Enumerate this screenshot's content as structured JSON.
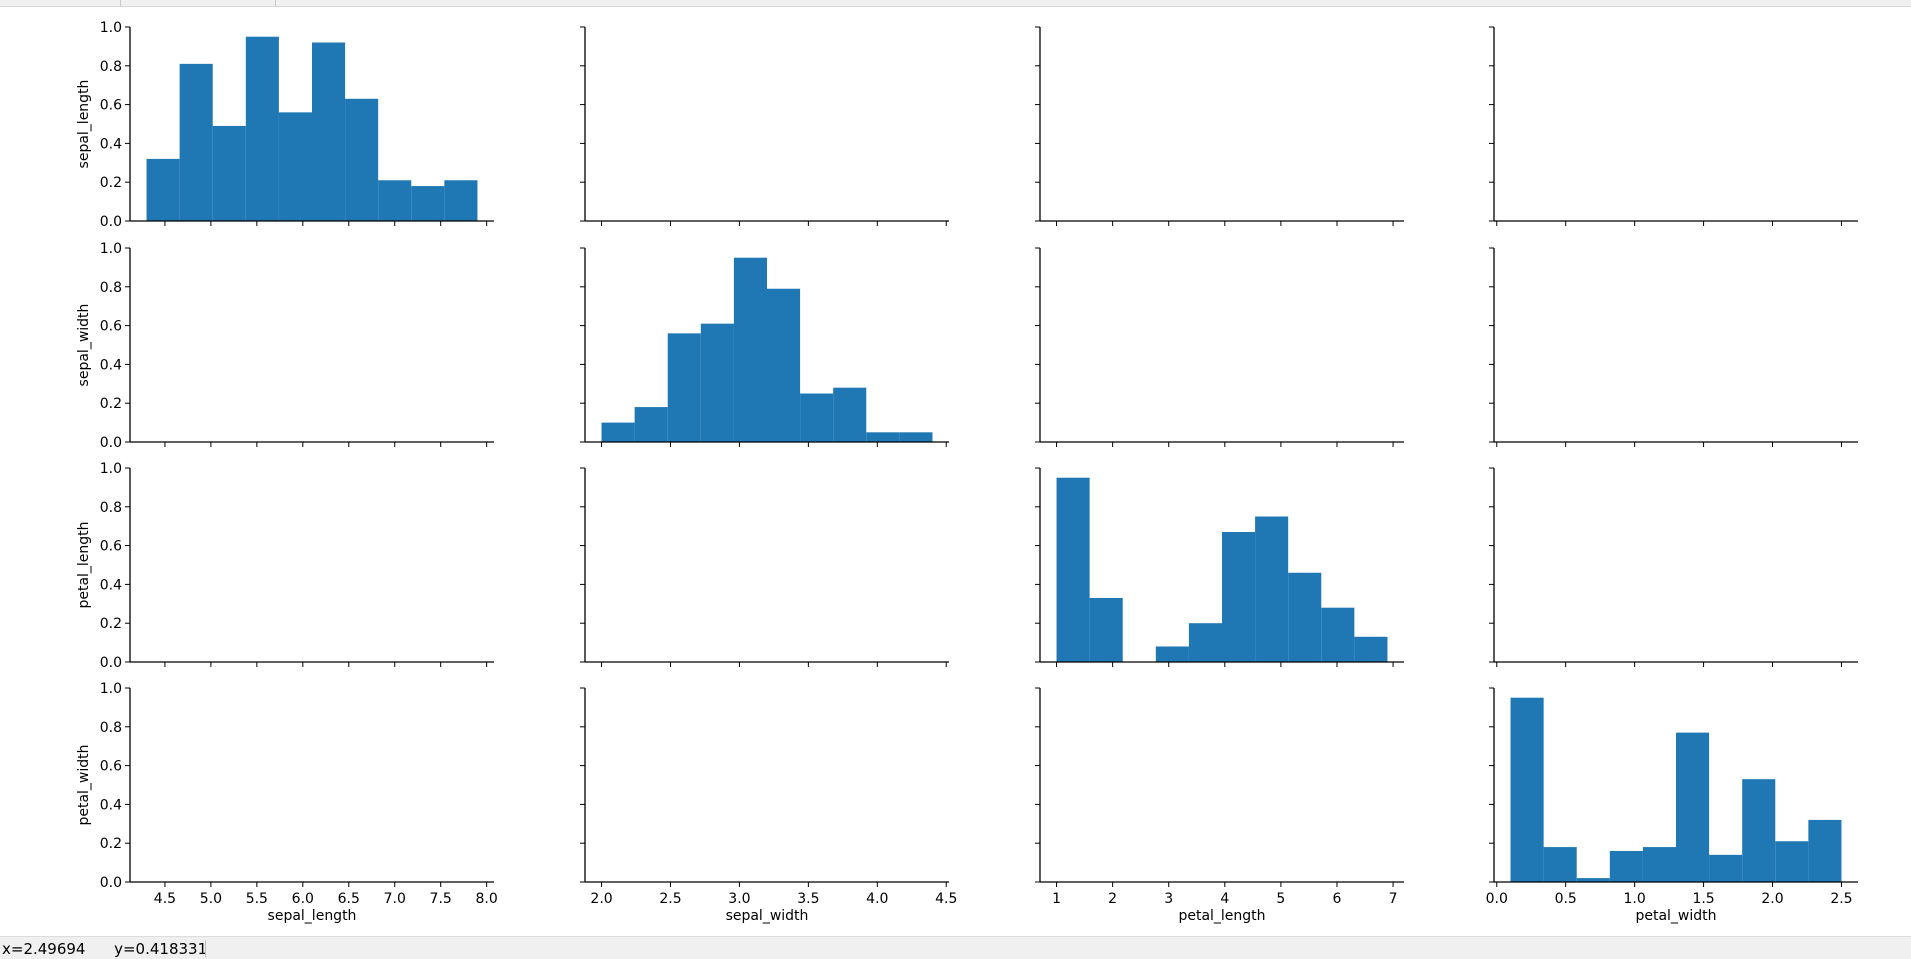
{
  "chart_data": {
    "type": "pairplot",
    "variables": [
      "sepal_length",
      "sepal_width",
      "petal_length",
      "petal_width"
    ],
    "colors": {
      "bar": "#1f77b4",
      "axes": "#000000"
    },
    "diagonal_histograms": [
      {
        "variable": "sepal_length",
        "xlim": [
          4.12,
          8.08
        ],
        "xticks": [
          4.5,
          5.0,
          5.5,
          6.0,
          6.5,
          7.0,
          7.5,
          8.0
        ],
        "xtick_labels": [
          "4.5",
          "5.0",
          "5.5",
          "6.0",
          "6.5",
          "7.0",
          "7.5",
          "8.0"
        ],
        "bin_edges": [
          4.3,
          4.66,
          5.02,
          5.38,
          5.74,
          6.1,
          6.46,
          6.82,
          7.18,
          7.54,
          7.9
        ],
        "heights": [
          0.32,
          0.81,
          0.49,
          0.95,
          0.56,
          0.92,
          0.63,
          0.21,
          0.18,
          0.21
        ]
      },
      {
        "variable": "sepal_width",
        "xlim": [
          1.88,
          4.52
        ],
        "xticks": [
          2.0,
          2.5,
          3.0,
          3.5,
          4.0,
          4.5
        ],
        "xtick_labels": [
          "2.0",
          "2.5",
          "3.0",
          "3.5",
          "4.0",
          "4.5"
        ],
        "bin_edges": [
          2.0,
          2.24,
          2.48,
          2.72,
          2.96,
          3.2,
          3.44,
          3.68,
          3.92,
          4.16,
          4.4
        ],
        "heights": [
          0.1,
          0.18,
          0.56,
          0.61,
          0.95,
          0.79,
          0.25,
          0.28,
          0.05,
          0.05
        ]
      },
      {
        "variable": "petal_length",
        "xlim": [
          0.705,
          7.195
        ],
        "xticks": [
          1,
          2,
          3,
          4,
          5,
          6,
          7
        ],
        "xtick_labels": [
          "1",
          "2",
          "3",
          "4",
          "5",
          "6",
          "7"
        ],
        "bin_edges": [
          1.0,
          1.59,
          2.18,
          2.77,
          3.36,
          3.95,
          4.54,
          5.13,
          5.72,
          6.31,
          6.9
        ],
        "heights": [
          0.95,
          0.33,
          0.0,
          0.08,
          0.2,
          0.67,
          0.75,
          0.46,
          0.28,
          0.13
        ]
      },
      {
        "variable": "petal_width",
        "xlim": [
          -0.02,
          2.62
        ],
        "xticks": [
          0.0,
          0.5,
          1.0,
          1.5,
          2.0,
          2.5
        ],
        "xtick_labels": [
          "0.0",
          "0.5",
          "1.0",
          "1.5",
          "2.0",
          "2.5"
        ],
        "bin_edges": [
          0.1,
          0.34,
          0.58,
          0.82,
          1.06,
          1.3,
          1.54,
          1.78,
          2.02,
          2.26,
          2.5
        ],
        "heights": [
          0.95,
          0.18,
          0.02,
          0.16,
          0.18,
          0.77,
          0.14,
          0.53,
          0.21,
          0.32
        ]
      }
    ],
    "ylim": [
      0.0,
      1.0
    ],
    "yticks": [
      0.0,
      0.2,
      0.4,
      0.6,
      0.8,
      1.0
    ],
    "ytick_labels": [
      "0.0",
      "0.2",
      "0.4",
      "0.6",
      "0.8",
      "1.0"
    ],
    "row_labels": [
      "sepal_length",
      "sepal_width",
      "petal_length",
      "petal_width"
    ],
    "column_labels": [
      "sepal_length",
      "sepal_width",
      "petal_length",
      "petal_width"
    ],
    "off_diagonal": "empty"
  },
  "statusbar": {
    "x_readout": "x=2.49694",
    "y_readout": "y=0.418331"
  }
}
